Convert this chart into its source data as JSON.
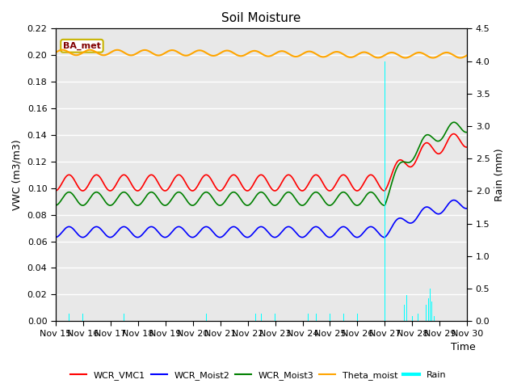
{
  "title": "Soil Moisture",
  "xlabel": "Time",
  "ylabel_left": "VWC (m3/m3)",
  "ylabel_right": "Rain (mm)",
  "ylim_left": [
    0.0,
    0.22
  ],
  "ylim_right": [
    0.0,
    4.5
  ],
  "yticks_left": [
    0.0,
    0.02,
    0.04,
    0.06,
    0.08,
    0.1,
    0.12,
    0.14,
    0.16,
    0.18,
    0.2,
    0.22
  ],
  "yticks_right": [
    0.0,
    0.5,
    1.0,
    1.5,
    2.0,
    2.5,
    3.0,
    3.5,
    4.0,
    4.5
  ],
  "xtick_labels": [
    "Nov 15",
    "Nov 16",
    "Nov 17",
    "Nov 18",
    "Nov 19",
    "Nov 20",
    "Nov 21",
    "Nov 22",
    "Nov 23",
    "Nov 24",
    "Nov 25",
    "Nov 26",
    "Nov 27",
    "Nov 28",
    "Nov 29",
    "Nov 30"
  ],
  "plot_bg_color": "#e8e8e8",
  "station_label": "BA_met",
  "station_label_color": "#800000",
  "station_box_edgecolor": "#c8b400",
  "legend_entries": [
    "WCR_VMC1",
    "WCR_Moist2",
    "WCR_Moist3",
    "Theta_moist",
    "Rain"
  ],
  "legend_colors": [
    "red",
    "blue",
    "green",
    "orange",
    "cyan"
  ],
  "wcr_vmc1_base": 0.104,
  "wcr_vmc1_amp": 0.006,
  "wcr_moist2_base": 0.067,
  "wcr_moist2_amp": 0.004,
  "wcr_moist3_base": 0.092,
  "wcr_moist3_amp": 0.005,
  "theta_base": 0.202,
  "theta_amp": 0.002,
  "rain_big_spike_val": 4.0,
  "rain_big_spike_day": 12.0,
  "vmc1_rise": 0.038,
  "moist2_rise": 0.028,
  "moist3_rise": 0.06
}
